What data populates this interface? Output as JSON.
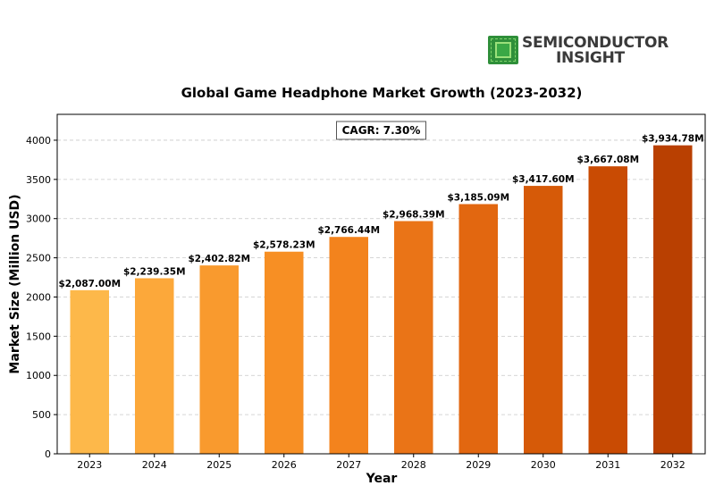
{
  "logo": {
    "line1": "SEMICONDUCTOR",
    "line2": "INSIGHT"
  },
  "chart_data": {
    "type": "bar",
    "title": "Global Game Headphone Market Growth (2023-2032)",
    "xlabel": "Year",
    "ylabel": "Market Size (Million USD)",
    "annotation": "CAGR: 7.30%",
    "categories": [
      "2023",
      "2024",
      "2025",
      "2026",
      "2027",
      "2028",
      "2029",
      "2030",
      "2031",
      "2032"
    ],
    "values": [
      2087.0,
      2239.35,
      2402.82,
      2578.23,
      2766.44,
      2968.39,
      3185.09,
      3417.6,
      3667.08,
      3934.78
    ],
    "data_labels": [
      "$2,087.00M",
      "$2,239.35M",
      "$2,402.82M",
      "$2,578.23M",
      "$2,766.44M",
      "$2,968.39M",
      "$3,185.09M",
      "$3,417.60M",
      "$3,667.08M",
      "$3,934.78M"
    ],
    "bar_colors": [
      "#fdb84a",
      "#fca83a",
      "#f99a2e",
      "#f78f24",
      "#f3831d",
      "#ea7417",
      "#e26710",
      "#d65a08",
      "#c94b03",
      "#b94001"
    ],
    "yticks": [
      0,
      500,
      1000,
      1500,
      2000,
      2500,
      3000,
      3500,
      4000
    ],
    "ylim": [
      0,
      4330
    ],
    "grid": "y-dashed"
  }
}
